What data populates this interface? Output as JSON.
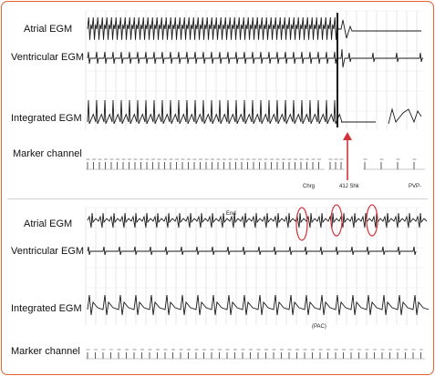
{
  "panel_top": {
    "labels": {
      "atrial": "Atrial EGM",
      "ventricular": "Ventricular EGM",
      "integrated": "Integrated EGM",
      "marker": "Marker channel"
    },
    "annotations": {
      "charge": "Chrg",
      "shock": "41J Shk",
      "pvp": "PVP-"
    }
  },
  "panel_bottom": {
    "labels": {
      "atrial": "Atrial EGM",
      "ventricular": "Ventricular EGM",
      "integrated": "Integrated EGM",
      "marker": "Marker channel"
    },
    "annotations": {
      "end": "End",
      "pac": "(PAC)"
    }
  },
  "colors": {
    "frame": "#e8602c",
    "arrow": "#d0343a",
    "trace": "#1a1a1a",
    "grid": "#c9c9c9"
  }
}
